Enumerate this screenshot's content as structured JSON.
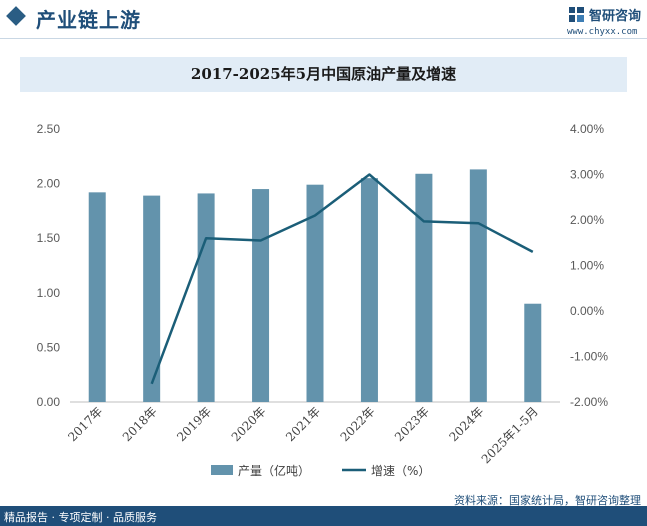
{
  "header": {
    "section_title": "产业链上游",
    "brand_name": "智研咨询",
    "brand_url": "www.chyxx.com",
    "logo_icon": "zhiyan-logo-icon"
  },
  "colors": {
    "bar": "#6393ac",
    "line": "#1b5e78",
    "accent": "#1f4e79"
  },
  "chart_data": {
    "type": "bar+line",
    "title": "2017-2025年5月中国原油产量及增速",
    "categories": [
      "2017年",
      "2018年",
      "2019年",
      "2020年",
      "2021年",
      "2022年",
      "2023年",
      "2024年",
      "2025年1-5月"
    ],
    "series": [
      {
        "name": "产量（亿吨）",
        "type": "bar",
        "axis": "left",
        "values": [
          1.92,
          1.89,
          1.91,
          1.95,
          1.99,
          2.05,
          2.09,
          2.13,
          0.9
        ]
      },
      {
        "name": "增速（%）",
        "type": "line",
        "axis": "right",
        "values": [
          null,
          -1.6,
          1.6,
          1.55,
          2.1,
          3.0,
          1.97,
          1.93,
          1.3
        ]
      }
    ],
    "left_axis": {
      "ylim": [
        0,
        2.5
      ],
      "ticks": [
        "0.00",
        "0.50",
        "1.00",
        "1.50",
        "2.00",
        "2.50"
      ]
    },
    "right_axis": {
      "ylim": [
        -2,
        4
      ],
      "ticks": [
        "-2.00%",
        "-1.00%",
        "0.00%",
        "1.00%",
        "2.00%",
        "3.00%",
        "4.00%"
      ]
    },
    "legend_position": "bottom",
    "grid": false
  },
  "footer": {
    "left_text": "精品报告 · 专项定制 · 品质服务",
    "source_text": "资料来源：国家统计局，智研咨询整理"
  }
}
